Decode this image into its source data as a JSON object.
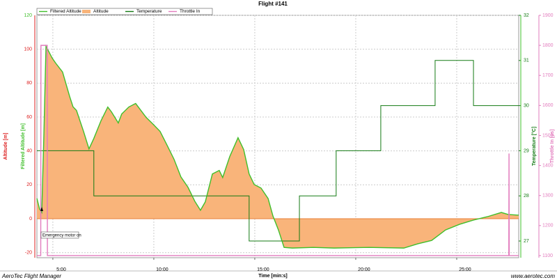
{
  "chart_data": {
    "type": "line",
    "title": "Flight #141",
    "xlabel": "Time [min:s]",
    "y_axis_labels": [
      "Altitude [m]",
      "Filtered Altitude [m]"
    ],
    "y2label": "Temperature [°C]",
    "y3label": "Throttle In [µs]",
    "annotation": "Emergency motor on",
    "grid": true,
    "xlim": [
      4.21,
      28.07
    ],
    "xticks": [
      {
        "value": 5,
        "label": "5:00"
      },
      {
        "value": 10,
        "label": "10:00"
      },
      {
        "value": 15,
        "label": "15:00"
      },
      {
        "value": 20,
        "label": "20:00"
      },
      {
        "value": 25,
        "label": "25:00"
      }
    ],
    "ylim": [
      -23,
      120
    ],
    "yticks": [
      -20,
      0,
      20,
      40,
      60,
      80,
      100,
      120
    ],
    "y2lim": [
      26.63,
      32
    ],
    "y2ticks": [
      27,
      28,
      29,
      30,
      31,
      32
    ],
    "y3lim": [
      1093,
      1900
    ],
    "y3ticks": [
      1100,
      1200,
      1300,
      1400,
      1500,
      1600,
      1700,
      1800,
      1900
    ],
    "series": [
      {
        "name": "Filtered Altitude",
        "color": "#3fbf2a",
        "style": "line",
        "axis": "y",
        "x": [
          4.21,
          4.34,
          4.45,
          4.55,
          4.66,
          4.79,
          4.97,
          5.14,
          5.48,
          5.83,
          6.0,
          6.17,
          6.52,
          6.79,
          7.03,
          7.38,
          7.72,
          7.9,
          8.24,
          8.41,
          8.76,
          9.1,
          9.62,
          9.97,
          10.31,
          10.66,
          11.0,
          11.34,
          11.69,
          12.03,
          12.31,
          12.55,
          12.9,
          13.24,
          13.41,
          13.76,
          14.17,
          14.45,
          14.72,
          14.97,
          15.31,
          15.66,
          15.9,
          16.17,
          16.45,
          16.86,
          17.9,
          18.93,
          20.66,
          22.38,
          23.07,
          23.76,
          24.45,
          25.14,
          25.83,
          26.52,
          27.21,
          27.55,
          28.07
        ],
        "values": [
          12.0,
          5.8,
          3.7,
          47.0,
          101.7,
          98.8,
          94.7,
          91.8,
          86.6,
          72.2,
          66.0,
          63.9,
          51.5,
          41.2,
          47.4,
          57.7,
          65.9,
          63.1,
          56.5,
          61.8,
          65.9,
          68.0,
          59.8,
          55.7,
          51.5,
          43.3,
          35.1,
          24.7,
          18.6,
          10.3,
          5.0,
          10.0,
          26.4,
          28.5,
          24.3,
          36.7,
          47.8,
          40.8,
          26.4,
          20.2,
          18.1,
          11.9,
          1.6,
          -6.6,
          -16.9,
          -17.3,
          -16.9,
          -17.3,
          -16.9,
          -17.3,
          -14.8,
          -12.8,
          -6.6,
          -3.3,
          -0.8,
          1.2,
          3.7,
          2.5,
          2.1
        ]
      },
      {
        "name": "Altitude",
        "color": "#f9b47a",
        "style": "area",
        "axis": "y",
        "x": [
          4.21,
          4.34,
          4.45,
          4.55,
          4.66,
          4.79,
          4.97,
          5.14,
          5.48,
          5.83,
          6.0,
          6.17,
          6.52,
          6.79,
          7.03,
          7.38,
          7.72,
          7.9,
          8.24,
          8.41,
          8.76,
          9.1,
          9.62,
          9.97,
          10.31,
          10.66,
          11.0,
          11.34,
          11.69,
          12.03,
          12.31,
          12.55,
          12.9,
          13.24,
          13.41,
          13.76,
          14.17,
          14.45,
          14.72,
          14.97,
          15.31,
          15.66,
          15.9,
          16.17,
          16.45,
          16.86,
          17.9,
          18.93,
          20.66,
          22.38,
          23.07,
          23.76,
          24.45,
          25.14,
          25.83,
          26.52,
          27.21,
          27.55,
          28.07
        ],
        "values": [
          12.0,
          5.8,
          3.7,
          47.0,
          101.7,
          98.8,
          94.7,
          91.8,
          86.6,
          72.2,
          66.0,
          63.9,
          51.5,
          41.2,
          47.4,
          57.7,
          65.9,
          63.1,
          56.5,
          61.8,
          65.9,
          68.0,
          59.8,
          55.7,
          51.5,
          43.3,
          35.1,
          24.7,
          18.6,
          10.3,
          5.0,
          10.0,
          26.4,
          28.5,
          24.3,
          36.7,
          47.8,
          40.8,
          26.4,
          20.2,
          18.1,
          11.9,
          1.6,
          -6.6,
          -16.9,
          -17.3,
          -16.9,
          -17.3,
          -16.9,
          -17.3,
          -14.8,
          -12.8,
          -6.6,
          -3.3,
          -0.8,
          1.2,
          3.7,
          2.5,
          2.1
        ]
      },
      {
        "name": "Temperature",
        "color": "#137a13",
        "style": "step",
        "axis": "y2",
        "x": [
          4.21,
          7.03,
          14.72,
          17.21,
          19.03,
          21.24,
          23.93,
          25.83
        ],
        "values": [
          29,
          28,
          27,
          28,
          29,
          30,
          31,
          30
        ]
      },
      {
        "name": "Throttle In",
        "color": "#e27bbd",
        "style": "line",
        "axis": "y3",
        "x": [
          4.21,
          4.4,
          4.41,
          4.72,
          4.73,
          27.58,
          27.59,
          27.6,
          28.07
        ],
        "values": [
          1100,
          1100,
          1800,
          1800,
          1100,
          1100,
          1440,
          1100,
          1100
        ]
      }
    ]
  },
  "footer": {
    "left": "AeroTec Flight Manager",
    "right": "www.aerotec.com"
  }
}
